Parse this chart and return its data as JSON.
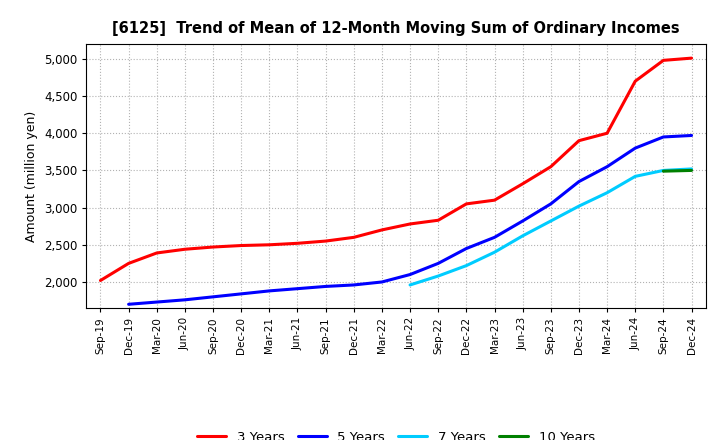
{
  "title": "[6125]  Trend of Mean of 12-Month Moving Sum of Ordinary Incomes",
  "ylabel": "Amount (million yen)",
  "ylim": [
    1650,
    5200
  ],
  "yticks": [
    2000,
    2500,
    3000,
    3500,
    4000,
    4500,
    5000
  ],
  "background_color": "#ffffff",
  "plot_bg_color": "#ffffff",
  "grid_color": "#aaaaaa",
  "series": {
    "3 Years": {
      "color": "#ff0000",
      "data": {
        "Sep-19": 2020,
        "Dec-19": 2250,
        "Mar-20": 2390,
        "Jun-20": 2440,
        "Sep-20": 2470,
        "Dec-20": 2490,
        "Mar-21": 2500,
        "Jun-21": 2520,
        "Sep-21": 2550,
        "Dec-21": 2600,
        "Mar-22": 2700,
        "Jun-22": 2780,
        "Sep-22": 2830,
        "Dec-22": 3050,
        "Mar-23": 3100,
        "Jun-23": 3320,
        "Sep-23": 3550,
        "Dec-23": 3900,
        "Mar-24": 4000,
        "Jun-24": 4700,
        "Sep-24": 4980,
        "Dec-24": 5010
      }
    },
    "5 Years": {
      "color": "#0000ff",
      "data": {
        "Dec-19": 1700,
        "Mar-20": 1730,
        "Jun-20": 1760,
        "Sep-20": 1800,
        "Dec-20": 1840,
        "Mar-21": 1880,
        "Jun-21": 1910,
        "Sep-21": 1940,
        "Dec-21": 1960,
        "Mar-22": 2000,
        "Jun-22": 2100,
        "Sep-22": 2250,
        "Dec-22": 2450,
        "Mar-23": 2600,
        "Jun-23": 2820,
        "Sep-23": 3050,
        "Dec-23": 3350,
        "Mar-24": 3550,
        "Jun-24": 3800,
        "Sep-24": 3950,
        "Dec-24": 3970
      }
    },
    "7 Years": {
      "color": "#00ccff",
      "data": {
        "Jun-22": 1960,
        "Sep-22": 2080,
        "Dec-22": 2220,
        "Mar-23": 2400,
        "Jun-23": 2620,
        "Sep-23": 2820,
        "Dec-23": 3020,
        "Mar-24": 3200,
        "Jun-24": 3420,
        "Sep-24": 3500,
        "Dec-24": 3520
      }
    },
    "10 Years": {
      "color": "#008000",
      "data": {
        "Sep-24": 3490,
        "Dec-24": 3500
      }
    }
  },
  "x_labels": [
    "Sep-19",
    "Dec-19",
    "Mar-20",
    "Jun-20",
    "Sep-20",
    "Dec-20",
    "Mar-21",
    "Jun-21",
    "Sep-21",
    "Dec-21",
    "Mar-22",
    "Jun-22",
    "Sep-22",
    "Dec-22",
    "Mar-23",
    "Jun-23",
    "Sep-23",
    "Dec-23",
    "Mar-24",
    "Jun-24",
    "Sep-24",
    "Dec-24"
  ]
}
